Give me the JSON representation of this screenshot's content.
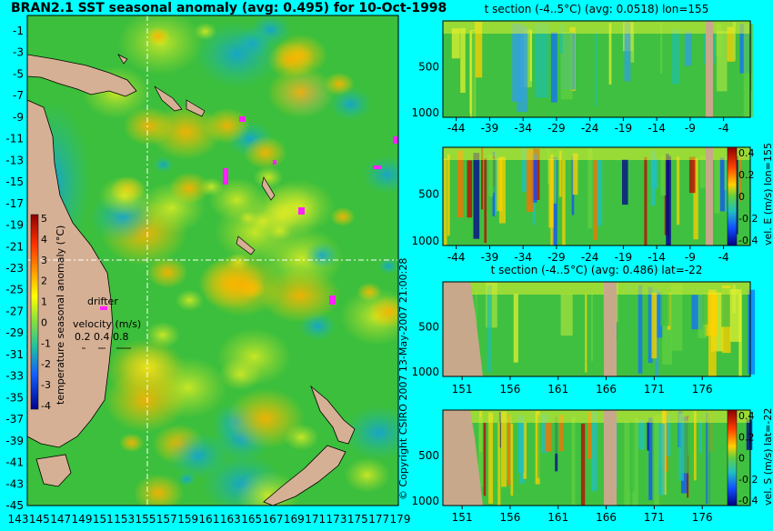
{
  "map": {
    "title": "BRAN2.1 SST seasonal anomaly (avg: 0.495) for 10-Oct-1998",
    "lat_labels": [
      "-1",
      "-3",
      "-5",
      "-7",
      "-9",
      "-11",
      "-13",
      "-15",
      "-17",
      "-19",
      "-21",
      "-23",
      "-25",
      "-27",
      "-29",
      "-31",
      "-33",
      "-35",
      "-37",
      "-39",
      "-41",
      "-43",
      "-45"
    ],
    "lon_labels": [
      "143",
      "145",
      "147",
      "149",
      "151",
      "153",
      "155",
      "157",
      "159",
      "161",
      "163",
      "165",
      "167",
      "169",
      "171",
      "173",
      "175",
      "177",
      "179"
    ],
    "colorbar_label": "temperature seasonal anomaly (°C)",
    "colorbar_ticks": [
      "5",
      "4",
      "3",
      "2",
      "1",
      "0",
      "-1",
      "-2",
      "-3",
      "-4"
    ],
    "drifter_label": "drifter",
    "velocity_label": "velocity (m/s)",
    "velocity_scale": "0.2 0.4 0.8",
    "section_lon": 155,
    "section_lat": -22
  },
  "side_text": "© Copyright CSIRO 2007  13-May-2007 21:00:28",
  "panels": [
    {
      "name": "t-section-lon",
      "title": "t section (-4..5°C) (avg: 0.0518) lon=155",
      "y_ticks": [
        "500",
        "1000"
      ],
      "x_ticks": [
        "-44",
        "-39",
        "-34",
        "-29",
        "-24",
        "-19",
        "-14",
        "-9",
        "-4"
      ],
      "colorbar": false
    },
    {
      "name": "vel-e-lon",
      "title": "",
      "y_ticks": [
        "500",
        "1000"
      ],
      "x_ticks": [
        "-44",
        "-39",
        "-34",
        "-29",
        "-24",
        "-19",
        "-14",
        "-9",
        "-4"
      ],
      "colorbar": true,
      "cb_ticks": [
        "0.4",
        "0.2",
        "0",
        "-0.2",
        "-0.4"
      ],
      "cb_label": "vel. E (m/s) lon=155"
    },
    {
      "name": "t-section-lat",
      "title": "t section (-4..5°C) (avg: 0.486) lat=-22",
      "y_ticks": [
        "500",
        "1000"
      ],
      "x_ticks": [
        "151",
        "156",
        "161",
        "166",
        "171",
        "176"
      ],
      "colorbar": false
    },
    {
      "name": "vel-s-lat",
      "title": "",
      "y_ticks": [
        "500",
        "1000"
      ],
      "x_ticks": [
        "151",
        "156",
        "161",
        "166",
        "171",
        "176"
      ],
      "colorbar": true,
      "cb_ticks": [
        "0.4",
        "0.2",
        "0",
        "-0.2",
        "-0.4"
      ],
      "cb_label": "vel. S (m/s) lat=-22"
    }
  ],
  "chart_data": [
    {
      "type": "heatmap",
      "title": "BRAN2.1 SST seasonal anomaly (avg: 0.495) for 10-Oct-1998",
      "xlabel": "",
      "ylabel": "",
      "xlim": [
        142,
        180
      ],
      "ylim": [
        -45,
        0
      ],
      "clim": [
        -4,
        5
      ],
      "colorbar_label": "temperature seasonal anomaly (°C)"
    },
    {
      "type": "heatmap",
      "title": "t section (-4..5°C) (avg: 0.0518) lon=155",
      "xlim": [
        -46,
        0
      ],
      "ylim": [
        1050,
        0
      ],
      "clim": [
        -4,
        5
      ]
    },
    {
      "type": "heatmap",
      "title": "",
      "xlim": [
        -46,
        0
      ],
      "ylim": [
        1050,
        0
      ],
      "clim": [
        -0.4,
        0.4
      ],
      "colorbar_label": "vel. E (m/s) lon=155"
    },
    {
      "type": "heatmap",
      "title": "t section (-4..5°C) (avg: 0.486) lat=-22",
      "xlim": [
        149,
        181
      ],
      "ylim": [
        1050,
        0
      ],
      "clim": [
        -4,
        5
      ]
    },
    {
      "type": "heatmap",
      "title": "",
      "xlim": [
        149,
        181
      ],
      "ylim": [
        1050,
        0
      ],
      "clim": [
        -0.4,
        0.4
      ],
      "colorbar_label": "vel. S (m/s) lat=-22"
    }
  ],
  "colors": {
    "background": "#00ffff",
    "land": "#d6b095",
    "ocean_base": "#3cbf3c",
    "warm": "#ffd200",
    "cold": "#0050ff"
  }
}
